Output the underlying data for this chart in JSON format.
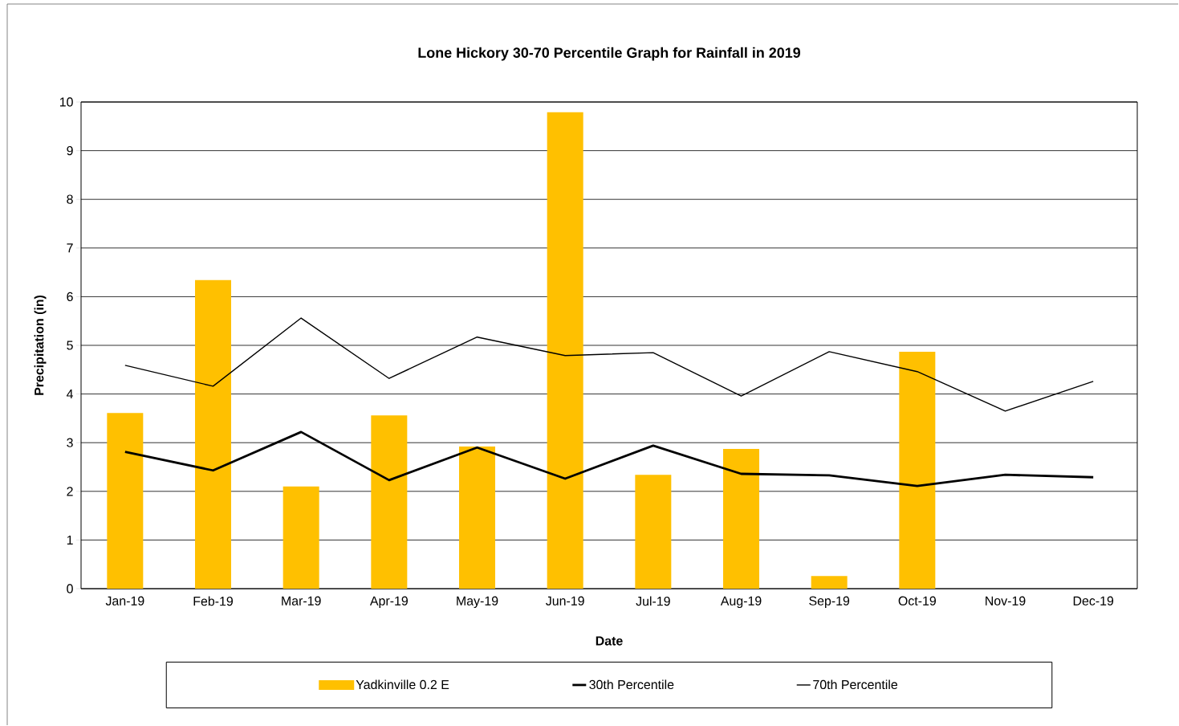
{
  "chart_data": {
    "type": "bar",
    "title": "Lone Hickory 30-70 Percentile Graph for Rainfall in 2019",
    "xlabel": "Date",
    "ylabel": "Precipitation (in)",
    "categories": [
      "Jan-19",
      "Feb-19",
      "Mar-19",
      "Apr-19",
      "May-19",
      "Jun-19",
      "Jul-19",
      "Aug-19",
      "Sep-19",
      "Oct-19",
      "Nov-19",
      "Dec-19"
    ],
    "series": [
      {
        "name": "Yadkinville 0.2 E",
        "color": "#ffc000",
        "values": [
          3.61,
          6.34,
          2.1,
          3.56,
          2.92,
          9.79,
          2.34,
          2.87,
          0.26,
          4.87,
          null,
          null
        ]
      },
      {
        "name": "30th Percentile",
        "type": "line",
        "color": "#000000",
        "values": [
          2.81,
          2.43,
          3.22,
          2.23,
          2.9,
          2.26,
          2.94,
          2.36,
          2.33,
          2.11,
          2.34,
          2.29
        ]
      },
      {
        "name": "70th Percentile",
        "type": "line",
        "color": "#000000",
        "values": [
          4.59,
          4.16,
          5.56,
          4.32,
          5.17,
          4.79,
          4.85,
          3.96,
          4.87,
          4.46,
          3.65,
          4.26
        ]
      }
    ],
    "ylim": [
      0,
      10
    ],
    "yticks": [
      0,
      1,
      2,
      3,
      4,
      5,
      6,
      7,
      8,
      9,
      10
    ],
    "grid": "y",
    "legend": "bottom",
    "marker": "none",
    "line_style": "solid"
  }
}
